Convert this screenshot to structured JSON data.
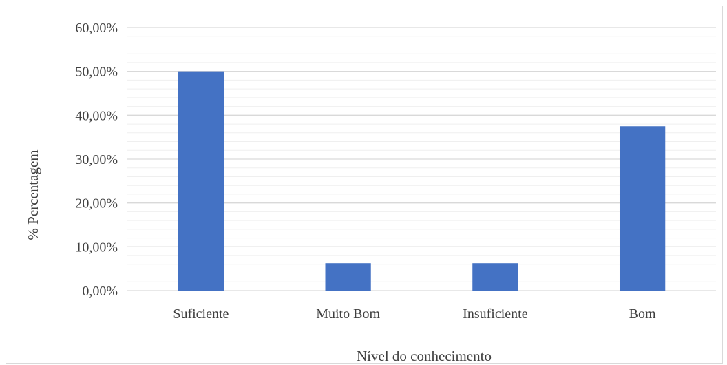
{
  "chart_data": {
    "type": "bar",
    "categories": [
      "Suficiente",
      "Muito Bom",
      "Insuficiente",
      "Bom"
    ],
    "values": [
      50.0,
      6.25,
      6.25,
      37.5
    ],
    "xlabel": "Nível do conhecimento",
    "ylabel": "% Percentagem",
    "ylim": [
      0,
      60
    ],
    "yticks": [
      "0,00%",
      "10,00%",
      "20,00%",
      "30,00%",
      "40,00%",
      "50,00%",
      "60,00%"
    ],
    "grid": true,
    "legend": "none",
    "colors": {
      "bar": "#4472c4",
      "major_grid": "#d9d9d9",
      "minor_grid": "#efefef"
    }
  }
}
